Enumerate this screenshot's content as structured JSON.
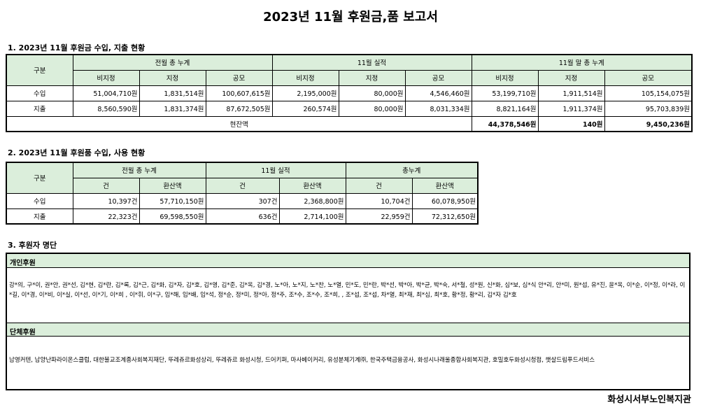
{
  "title": "2023년 11월 후원금,품 보고서",
  "section1": {
    "title": "1. 2023년 11월 후원금 수입, 지출 현황",
    "header": {
      "category": "구분",
      "groups": [
        "전월 총 누계",
        "11월 실적",
        "11월 말 총 누계"
      ],
      "subs": [
        "비지정",
        "지정",
        "공모",
        "비지정",
        "지정",
        "공모",
        "비지정",
        "지정",
        "공모"
      ]
    },
    "rows": [
      {
        "label": "수입",
        "cells": [
          "51,004,710원",
          "1,831,514원",
          "100,607,615원",
          "2,195,000원",
          "80,000원",
          "4,546,460원",
          "53,199,710원",
          "1,911,514원",
          "105,154,075원"
        ]
      },
      {
        "label": "지출",
        "cells": [
          "8,560,590원",
          "1,831,374원",
          "87,672,505원",
          "260,574원",
          "80,000원",
          "8,031,334원",
          "8,821,164원",
          "1,911,374원",
          "95,703,839원"
        ]
      }
    ],
    "balance": {
      "label": "현잔액",
      "cells": [
        "44,378,546원",
        "140원",
        "9,450,236원"
      ]
    }
  },
  "section2": {
    "title": "2. 2023년 11월 후원품 수입, 사용 현황",
    "header": {
      "category": "구분",
      "groups": [
        "전월 총 누계",
        "11월 실적",
        "총누계"
      ],
      "subs": [
        "건",
        "환산액",
        "건",
        "환산액",
        "건",
        "환산액"
      ]
    },
    "rows": [
      {
        "label": "수입",
        "cells": [
          "10,397건",
          "57,710,150원",
          "307건",
          "2,368,800원",
          "10,704건",
          "60,078,950원"
        ]
      },
      {
        "label": "지출",
        "cells": [
          "22,323건",
          "69,598,550원",
          "636건",
          "2,714,100원",
          "22,959건",
          "72,312,650원"
        ]
      }
    ]
  },
  "section3": {
    "title": "3. 후원자 명단",
    "individual_label": "개인후원",
    "individual_text": "강*의, 구*이, 권*안, 권*선, 김*현, 김*란, 김*록, 김*근, 김*화, 김*자, 김*호, 김*영, 김*준, 김*옥, 김*경, 노*아, 노*지, 노*찬, 노*열, 민*도, 민*란, 박*선, 박*아, 박*균, 박*숙, 서*철, 성*원, 신*화, 심*보, 심*식 안*리, 안*미, 원*섭, 유*진, 윤*옥, 이*순, 이*정, 이*라, 이*길, 이*경, 이*비, 이*실, 이*선, 이*기, 이*희 , 이*휘, 이*구, 임*해, 임*배, 임*석, 정*순, 정*미, 정*아, 정*주, 조*수, 조*수, 조*희, , 조*섭, 조*섭, 차*열, 최*재, 최*심, 최*호, 황*정, 황*리, 김*자 김*호",
    "group_label": "단체후원",
    "group_text": "남영커텐, 남양난파라이온스클럽, 대한불교조계종사회복지재단, 뚜레쥬르화성상리, 뚜레쥬르 화성시청, 드어키퍼, 마사베이커리, 유성분체기계㈜, 한국주택금융공사, 화성시나래울종합사회복지관, 호밀호두화성시청점, 햇살드림푸드서비스"
  },
  "footer": "화성시서부노인복지관",
  "colors": {
    "header_bg": "#dbeedb",
    "border": "#000000"
  }
}
